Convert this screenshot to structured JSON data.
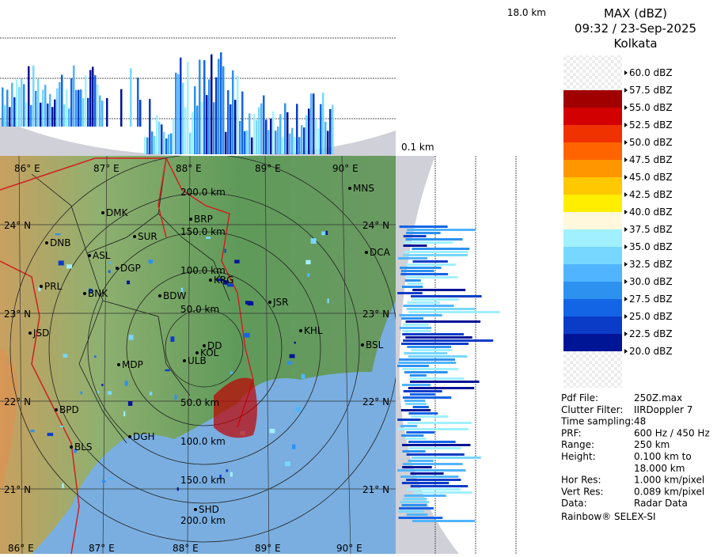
{
  "header": {
    "title": "MAX (dBZ)",
    "datetime": "09:32 / 23-Sep-2025",
    "station": "Kolkata"
  },
  "section_labels": {
    "top_height": "18.0 km",
    "bottom_height": "0.1 km"
  },
  "legend": [
    {
      "label": "60.0 dBZ",
      "color": "#f2f2f2"
    },
    {
      "label": "57.5 dBZ",
      "color": "#f2f2f2"
    },
    {
      "label": "55.0 dBZ",
      "color": "#a00000"
    },
    {
      "label": "52.5 dBZ",
      "color": "#d20000"
    },
    {
      "label": "50.0 dBZ",
      "color": "#f03200"
    },
    {
      "label": "47.5 dBZ",
      "color": "#ff6400"
    },
    {
      "label": "45.0 dBZ",
      "color": "#ff9600"
    },
    {
      "label": "42.5 dBZ",
      "color": "#ffc800"
    },
    {
      "label": "40.0 dBZ",
      "color": "#ffee00"
    },
    {
      "label": "37.5 dBZ",
      "color": "#fff8dc"
    },
    {
      "label": "35.0 dBZ",
      "color": "#a0f0ff"
    },
    {
      "label": "32.5 dBZ",
      "color": "#78d7ff"
    },
    {
      "label": "30.0 dBZ",
      "color": "#50b4ff"
    },
    {
      "label": "27.5 dBZ",
      "color": "#2d91f0"
    },
    {
      "label": "25.0 dBZ",
      "color": "#1464e6"
    },
    {
      "label": "22.5 dBZ",
      "color": "#0a3cc8"
    },
    {
      "label": "20.0 dBZ",
      "color": "#001496"
    }
  ],
  "info": [
    {
      "key": "Pdf File:",
      "value": "250Z.max"
    },
    {
      "key": "Clutter Filter:",
      "value": "IIRDoppler 7"
    },
    {
      "key": "Time sampling:48",
      "value": ""
    },
    {
      "key": "PRF:",
      "value": "600 Hz / 450 Hz"
    },
    {
      "key": "Range:",
      "value": "250 km"
    },
    {
      "key": "Height:",
      "value": "0.100 km to"
    },
    {
      "key": "",
      "value": "18.000 km"
    },
    {
      "key": "Hor Res:",
      "value": "1.000 km/pixel"
    },
    {
      "key": "Vert Res:",
      "value": "0.089 km/pixel"
    },
    {
      "key": "Data:",
      "value": "Radar Data"
    }
  ],
  "footer": "Rainbow® SELEX-SI",
  "map": {
    "lon_top": [
      "86° E",
      "87° E",
      "88° E",
      "89° E",
      "90° E"
    ],
    "lon_bottom": [
      "86° E",
      "87° E",
      "88° E",
      "89° E",
      "90° E"
    ],
    "lat_left": [
      "24° N",
      "23° N",
      "22° N",
      "21° N"
    ],
    "lat_right": [
      "24° N",
      "23° N",
      "22° N",
      "21° N"
    ],
    "rings_top": [
      "50.0 km",
      "100.0 km",
      "150.0 km",
      "200.0 km"
    ],
    "rings_bottom": [
      "50.0 km",
      "100.0 km",
      "150.0 km",
      "200.0 km"
    ],
    "cities": [
      "MNS",
      "DMK",
      "BRP",
      "DNB",
      "SUR",
      "ASL",
      "DGP",
      "DCA",
      "PRL",
      "KRG",
      "BNK",
      "BDW",
      "JSR",
      "JSD",
      "KHL",
      "BSL",
      "MDP",
      "DD",
      "KOL",
      "ULB",
      "BPD",
      "DGH",
      "BLS",
      "SHD"
    ]
  }
}
